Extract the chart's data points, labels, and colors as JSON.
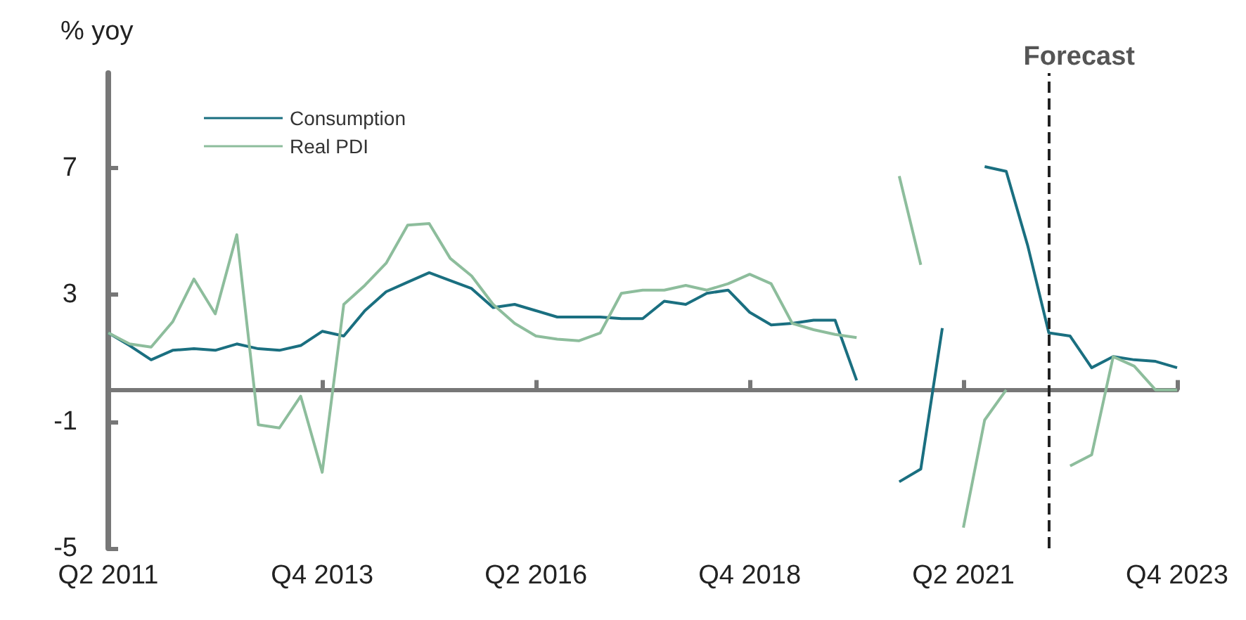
{
  "chart_data": {
    "type": "line",
    "ylabel": "% yoy",
    "x": [
      "2011-04-01",
      "2011-07-01",
      "2011-10-01",
      "2012-01-01",
      "2012-04-01",
      "2012-07-01",
      "2012-10-01",
      "2013-01-01",
      "2013-04-01",
      "2013-07-01",
      "2013-10-01",
      "2014-01-01",
      "2014-04-01",
      "2014-07-01",
      "2014-10-01",
      "2015-01-01",
      "2015-04-01",
      "2015-07-01",
      "2015-10-01",
      "2016-01-01",
      "2016-04-01",
      "2016-07-01",
      "2016-10-01",
      "2017-01-01",
      "2017-04-01",
      "2017-07-01",
      "2017-10-01",
      "2018-01-01",
      "2018-04-01",
      "2018-07-01",
      "2018-10-01",
      "2019-01-01",
      "2019-04-01",
      "2019-07-01",
      "2019-10-01",
      "2020-01-01",
      "2020-04-01",
      "2020-07-01",
      "2020-10-01",
      "2021-01-01",
      "2021-04-01",
      "2021-07-01",
      "2021-10-01",
      "2022-01-01",
      "2022-04-01",
      "2022-07-01",
      "2022-10-01",
      "2023-01-01",
      "2023-04-01",
      "2023-07-01",
      "2023-10-01"
    ],
    "series": [
      {
        "name": "Consumption",
        "color": "#1a6f80",
        "values": [
          1.8,
          1.4,
          0.95,
          1.25,
          1.3,
          1.25,
          1.45,
          1.3,
          1.25,
          1.4,
          1.85,
          1.7,
          2.5,
          3.1,
          3.4,
          3.7,
          3.45,
          3.2,
          2.6,
          2.7,
          2.5,
          2.3,
          2.3,
          2.3,
          2.25,
          2.25,
          2.8,
          2.7,
          3.05,
          3.15,
          2.45,
          2.05,
          2.1,
          2.2,
          2.2,
          0.3,
          null,
          -2.9,
          -2.5,
          1.95,
          null,
          7.05,
          6.9,
          4.55,
          1.8,
          1.7,
          0.7,
          1.05,
          0.95,
          0.9,
          0.7
        ]
      },
      {
        "name": "Real PDI",
        "color": "#8dbd9c",
        "values": [
          1.8,
          1.45,
          1.35,
          2.15,
          3.5,
          2.4,
          4.9,
          -1.1,
          -1.2,
          -0.2,
          -2.6,
          2.7,
          3.3,
          4.0,
          5.2,
          5.25,
          4.15,
          3.6,
          2.7,
          2.1,
          1.7,
          1.6,
          1.55,
          1.8,
          3.05,
          3.15,
          3.15,
          3.3,
          3.15,
          3.35,
          3.65,
          3.35,
          2.1,
          1.9,
          1.75,
          1.65,
          null,
          6.75,
          3.95,
          null,
          -4.35,
          -0.95,
          0.0,
          null,
          null,
          -2.4,
          -2.05,
          1.05,
          0.75,
          0.0,
          0.0
        ]
      }
    ],
    "xlim": [
      "2011-04-01",
      "2023-10-01"
    ],
    "xticks": [
      {
        "value": "2011-04-01",
        "label": "Q2 2011"
      },
      {
        "value": "2013-10-01",
        "label": "Q4 2013"
      },
      {
        "value": "2016-04-01",
        "label": "Q2 2016"
      },
      {
        "value": "2018-10-01",
        "label": "Q4 2018"
      },
      {
        "value": "2021-04-01",
        "label": "Q2 2021"
      },
      {
        "value": "2023-10-01",
        "label": "Q4 2023"
      }
    ],
    "ylim": [
      -5,
      10
    ],
    "yticks": [
      -5,
      -1,
      3,
      7
    ],
    "ref_lines": [
      {
        "axis": "x",
        "value": "2022-04-01",
        "label": "Forecast",
        "color": "#222222",
        "line_style": "dashed"
      }
    ],
    "legend": "top left",
    "grid": false,
    "marker": "none",
    "line_style": "solid"
  }
}
